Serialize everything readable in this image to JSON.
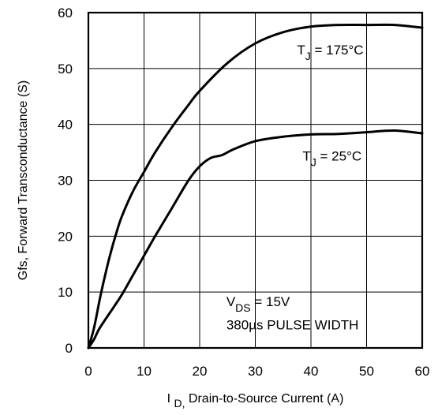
{
  "chart_data": {
    "type": "line",
    "title": "",
    "xlabel": {
      "main": "I",
      "sub": "D,",
      "rest": " Drain-to-Source Current (A)"
    },
    "ylabel": "Gfs, Forward Transconductance (S)",
    "xlim": [
      0,
      60
    ],
    "ylim": [
      0,
      60
    ],
    "xticks": [
      0,
      10,
      20,
      30,
      40,
      50,
      60
    ],
    "yticks": [
      0,
      10,
      20,
      30,
      40,
      50,
      60
    ],
    "grid": true,
    "series": [
      {
        "name": "T_J = 175°C",
        "x": [
          0,
          1,
          2,
          3,
          4,
          5,
          6,
          8,
          10,
          12,
          15,
          18,
          20,
          25,
          30,
          35,
          40,
          45,
          50,
          55,
          60
        ],
        "y": [
          0,
          3.5,
          8.5,
          13,
          17,
          20.5,
          23.5,
          28,
          31.5,
          35,
          39.5,
          43.5,
          46,
          51,
          54.5,
          56.5,
          57.5,
          57.8,
          57.8,
          57.8,
          57.3
        ]
      },
      {
        "name": "T_J = 25°C",
        "x": [
          0,
          1,
          2,
          4,
          6,
          8,
          10,
          12,
          15,
          18,
          20,
          22,
          24,
          26,
          30,
          35,
          40,
          45,
          50,
          55,
          60
        ],
        "y": [
          0,
          1.5,
          3.5,
          6.5,
          9.5,
          13,
          16.5,
          20,
          25,
          30,
          32.5,
          34,
          34.5,
          35.5,
          37,
          37.8,
          38.2,
          38.3,
          38.6,
          38.9,
          38.4
        ]
      }
    ],
    "annotations": [
      {
        "id": "tj175",
        "main": "T",
        "sub": "J",
        "rest": " = 175°C",
        "x": 37.5,
        "y": 52.5
      },
      {
        "id": "tj25",
        "main": "T",
        "sub": "J",
        "rest": " = 25°C",
        "x": 38.5,
        "y": 33.5
      },
      {
        "id": "vds",
        "main": "V",
        "sub": "DS",
        "rest": " = 15V",
        "x": 24.8,
        "y": 7.5
      },
      {
        "id": "pulse",
        "text": "380µs PULSE WIDTH",
        "x": 24.8,
        "y": 3.3
      }
    ],
    "colors": {
      "line": "#000000",
      "grid": "#000000",
      "background": "#ffffff"
    }
  }
}
